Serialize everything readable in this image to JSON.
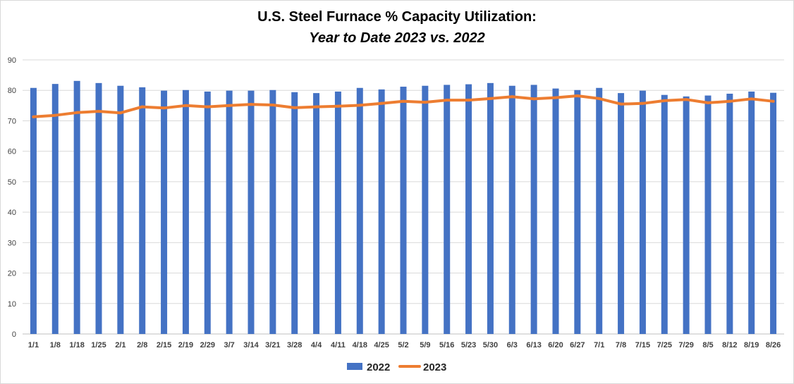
{
  "chart_data": {
    "type": "bar",
    "title": "U.S. Steel Furnace % Capacity Utilization:",
    "subtitle": "Year to Date 2023 vs. 2022",
    "xlabel": "",
    "ylabel": "",
    "ylim": [
      0,
      90
    ],
    "yticks": [
      0,
      10,
      20,
      30,
      40,
      50,
      60,
      70,
      80,
      90
    ],
    "grid": true,
    "legend_position": "bottom",
    "categories": [
      "1/1",
      "1/8",
      "1/18",
      "1/25",
      "2/1",
      "2/8",
      "2/15",
      "2/19",
      "2/29",
      "3/7",
      "3/14",
      "3/21",
      "3/28",
      "4/4",
      "4/11",
      "4/18",
      "4/25",
      "5/2",
      "5/9",
      "5/16",
      "5/23",
      "5/30",
      "6/3",
      "6/13",
      "6/20",
      "6/27",
      "7/1",
      "7/8",
      "7/15",
      "7/25",
      "7/29",
      "8/5",
      "8/12",
      "8/19",
      "8/26"
    ],
    "series": [
      {
        "name": "2022",
        "kind": "bar",
        "color": "#4472c4",
        "values": [
          80.8,
          82.1,
          83.1,
          82.4,
          81.5,
          81.0,
          79.9,
          80.1,
          79.6,
          79.9,
          79.9,
          80.1,
          79.4,
          79.1,
          79.6,
          80.8,
          80.3,
          81.2,
          81.5,
          81.8,
          82.0,
          82.4,
          81.5,
          81.8,
          80.6,
          80.1,
          80.8,
          79.1,
          79.9,
          78.5,
          78.0,
          78.3,
          78.9,
          79.6,
          79.2
        ]
      },
      {
        "name": "2023",
        "kind": "line",
        "color": "#ed7d31",
        "values": [
          71.3,
          71.8,
          72.7,
          73.1,
          72.6,
          74.6,
          74.2,
          75.0,
          74.6,
          75.0,
          75.4,
          75.2,
          74.3,
          74.6,
          74.8,
          75.1,
          75.7,
          76.4,
          76.1,
          76.8,
          76.8,
          77.3,
          77.9,
          77.2,
          77.6,
          78.2,
          77.3,
          75.5,
          75.7,
          76.6,
          77.0,
          75.9,
          76.4,
          77.2,
          76.4
        ]
      }
    ]
  }
}
